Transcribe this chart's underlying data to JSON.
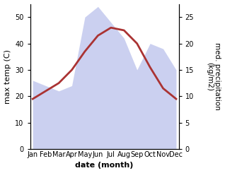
{
  "months": [
    "Jan",
    "Feb",
    "Mar",
    "Apr",
    "May",
    "Jun",
    "Jul",
    "Aug",
    "Sep",
    "Oct",
    "Nov",
    "Dec"
  ],
  "month_indices": [
    0,
    1,
    2,
    3,
    4,
    5,
    6,
    7,
    8,
    9,
    10,
    11
  ],
  "max_temp": [
    19,
    22,
    25,
    30,
    37,
    43,
    46,
    45,
    40,
    31,
    23,
    19
  ],
  "precipitation": [
    26,
    24,
    22,
    24,
    50,
    54,
    48,
    42,
    30,
    40,
    38,
    30
  ],
  "temp_ylim": [
    0,
    55
  ],
  "precip_ylim": [
    0,
    27.5
  ],
  "precip_scale": 2.0,
  "temp_yticks": [
    0,
    10,
    20,
    30,
    40,
    50
  ],
  "precip_yticks": [
    0,
    5,
    10,
    15,
    20,
    25
  ],
  "line_color": "#aa3333",
  "fill_color": "#b0b8e8",
  "fill_alpha": 0.65,
  "xlabel": "date (month)",
  "ylabel_left": "max temp (C)",
  "ylabel_right": "med. precipitation\n(kg/m2)",
  "xlabel_fontsize": 8,
  "ylabel_fontsize": 8,
  "tick_fontsize": 7,
  "line_width": 2.0,
  "bg_color": "#ffffff"
}
